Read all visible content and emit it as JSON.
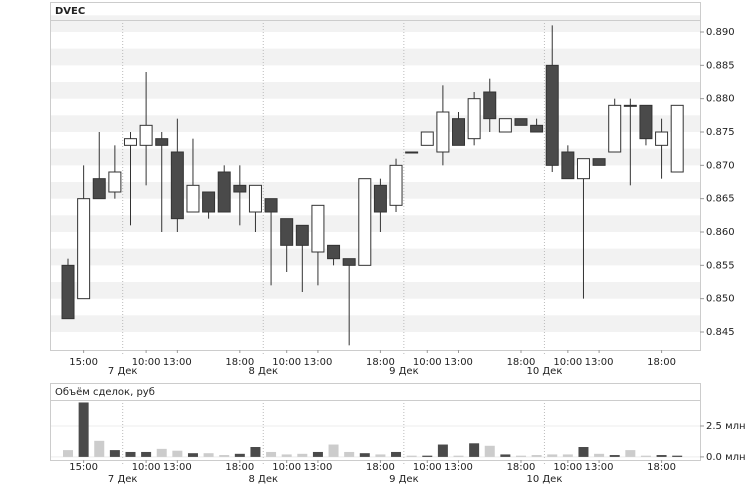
{
  "chart_data": [
    {
      "type": "candlestick",
      "title": "DVEC",
      "open": [
        0.855,
        0.85,
        0.868,
        0.866,
        0.873,
        0.873,
        0.874,
        0.872,
        0.863,
        0.866,
        0.869,
        0.867,
        0.863,
        0.865,
        0.862,
        0.861,
        0.857,
        0.858,
        0.856,
        0.855,
        0.867,
        0.864,
        0.872,
        0.873,
        0.872,
        0.877,
        0.874,
        0.881,
        0.875,
        0.877,
        0.876,
        0.885,
        0.872,
        0.868,
        0.871,
        0.872,
        0.879,
        0.879,
        0.873,
        0.869
      ],
      "high": [
        0.856,
        0.87,
        0.875,
        0.873,
        0.875,
        0.884,
        0.875,
        0.877,
        0.874,
        0.866,
        0.87,
        0.87,
        0.867,
        0.865,
        0.862,
        0.861,
        0.864,
        0.858,
        0.856,
        0.868,
        0.868,
        0.871,
        0.872,
        0.875,
        0.882,
        0.878,
        0.881,
        0.883,
        0.877,
        0.877,
        0.877,
        0.891,
        0.873,
        0.871,
        0.871,
        0.88,
        0.88,
        0.879,
        0.877,
        0.879
      ],
      "low": [
        0.847,
        0.85,
        0.865,
        0.865,
        0.861,
        0.867,
        0.86,
        0.86,
        0.863,
        0.862,
        0.863,
        0.861,
        0.86,
        0.852,
        0.854,
        0.851,
        0.852,
        0.855,
        0.843,
        0.855,
        0.86,
        0.863,
        0.872,
        0.873,
        0.87,
        0.873,
        0.873,
        0.875,
        0.875,
        0.876,
        0.875,
        0.869,
        0.868,
        0.85,
        0.87,
        0.872,
        0.867,
        0.873,
        0.868,
        0.869
      ],
      "close": [
        0.847,
        0.865,
        0.865,
        0.869,
        0.874,
        0.876,
        0.873,
        0.862,
        0.867,
        0.863,
        0.863,
        0.866,
        0.867,
        0.863,
        0.858,
        0.858,
        0.864,
        0.856,
        0.855,
        0.868,
        0.863,
        0.87,
        0.872,
        0.875,
        0.878,
        0.873,
        0.88,
        0.877,
        0.877,
        0.876,
        0.875,
        0.87,
        0.868,
        0.871,
        0.87,
        0.879,
        0.879,
        0.874,
        0.875,
        0.879
      ],
      "up_color": "#ffffff",
      "down_color": "#4a4a4a",
      "ylim": [
        0.8423,
        0.8918
      ],
      "yticks": [
        {
          "value": 0.845,
          "label": "0.845"
        },
        {
          "value": 0.85,
          "label": "0.850"
        },
        {
          "value": 0.855,
          "label": "0.855"
        },
        {
          "value": 0.86,
          "label": "0.860"
        },
        {
          "value": 0.865,
          "label": "0.865"
        },
        {
          "value": 0.87,
          "label": "0.870"
        },
        {
          "value": 0.875,
          "label": "0.875"
        },
        {
          "value": 0.88,
          "label": "0.880"
        },
        {
          "value": 0.885,
          "label": "0.885"
        },
        {
          "value": 0.89,
          "label": "0.890"
        }
      ],
      "xticks": [
        {
          "value": 1,
          "label": "15:00"
        },
        {
          "value": 5,
          "label": "10:00"
        },
        {
          "value": 7,
          "label": "13:00"
        },
        {
          "value": 11,
          "label": "18:00"
        },
        {
          "value": 14,
          "label": "10:00"
        },
        {
          "value": 16,
          "label": "13:00"
        },
        {
          "value": 20,
          "label": "18:00"
        },
        {
          "value": 23,
          "label": "10:00"
        },
        {
          "value": 25,
          "label": "13:00"
        },
        {
          "value": 29,
          "label": "18:00"
        },
        {
          "value": 32,
          "label": "10:00"
        },
        {
          "value": 34,
          "label": "13:00"
        },
        {
          "value": 38,
          "label": "18:00"
        }
      ],
      "date_ticks": [
        {
          "value": 3.5,
          "label": "7 Дек"
        },
        {
          "value": 12.5,
          "label": "8 Дек"
        },
        {
          "value": 21.5,
          "label": "9 Дек"
        },
        {
          "value": 30.5,
          "label": "10 Дек"
        }
      ],
      "grid": true
    },
    {
      "type": "bar",
      "title": "Объём сделок, руб",
      "values": [
        0.55,
        4.4,
        1.3,
        0.55,
        0.4,
        0.4,
        0.65,
        0.5,
        0.3,
        0.3,
        0.15,
        0.25,
        0.8,
        0.4,
        0.2,
        0.25,
        0.4,
        1.0,
        0.4,
        0.3,
        0.2,
        0.4,
        0.1,
        0.1,
        1.0,
        0.1,
        1.1,
        0.9,
        0.2,
        0.1,
        0.15,
        0.2,
        0.2,
        0.8,
        0.25,
        0.15,
        0.55,
        0.1,
        0.15,
        0.1
      ],
      "colors": [
        "#cccccc",
        "#4a4a4a",
        "#cccccc",
        "#4a4a4a",
        "#4a4a4a",
        "#4a4a4a",
        "#cccccc",
        "#cccccc",
        "#4a4a4a",
        "#cccccc",
        "#cccccc",
        "#4a4a4a",
        "#4a4a4a",
        "#cccccc",
        "#cccccc",
        "#cccccc",
        "#4a4a4a",
        "#cccccc",
        "#cccccc",
        "#4a4a4a",
        "#cccccc",
        "#4a4a4a",
        "#cccccc",
        "#4a4a4a",
        "#4a4a4a",
        "#cccccc",
        "#4a4a4a",
        "#cccccc",
        "#4a4a4a",
        "#cccccc",
        "#cccccc",
        "#cccccc",
        "#cccccc",
        "#4a4a4a",
        "#cccccc",
        "#4a4a4a",
        "#cccccc",
        "#cccccc",
        "#4a4a4a",
        "#4a4a4a"
      ],
      "ylim": [
        -0.25,
        4.6
      ],
      "yticks": [
        {
          "value": 0,
          "label": "0.0 млн"
        },
        {
          "value": 2.5,
          "label": "2.5 млн"
        }
      ],
      "xticks": [
        {
          "value": 1,
          "label": "15:00"
        },
        {
          "value": 5,
          "label": "10:00"
        },
        {
          "value": 7,
          "label": "13:00"
        },
        {
          "value": 11,
          "label": "18:00"
        },
        {
          "value": 14,
          "label": "10:00"
        },
        {
          "value": 16,
          "label": "13:00"
        },
        {
          "value": 20,
          "label": "18:00"
        },
        {
          "value": 23,
          "label": "10:00"
        },
        {
          "value": 25,
          "label": "13:00"
        },
        {
          "value": 29,
          "label": "18:00"
        },
        {
          "value": 32,
          "label": "10:00"
        },
        {
          "value": 34,
          "label": "13:00"
        },
        {
          "value": 38,
          "label": "18:00"
        }
      ],
      "date_ticks": [
        {
          "value": 3.5,
          "label": "7 Дек"
        },
        {
          "value": 12.5,
          "label": "8 Дек"
        },
        {
          "value": 21.5,
          "label": "9 Дек"
        },
        {
          "value": 30.5,
          "label": "10 Дек"
        }
      ],
      "grid": true
    }
  ]
}
